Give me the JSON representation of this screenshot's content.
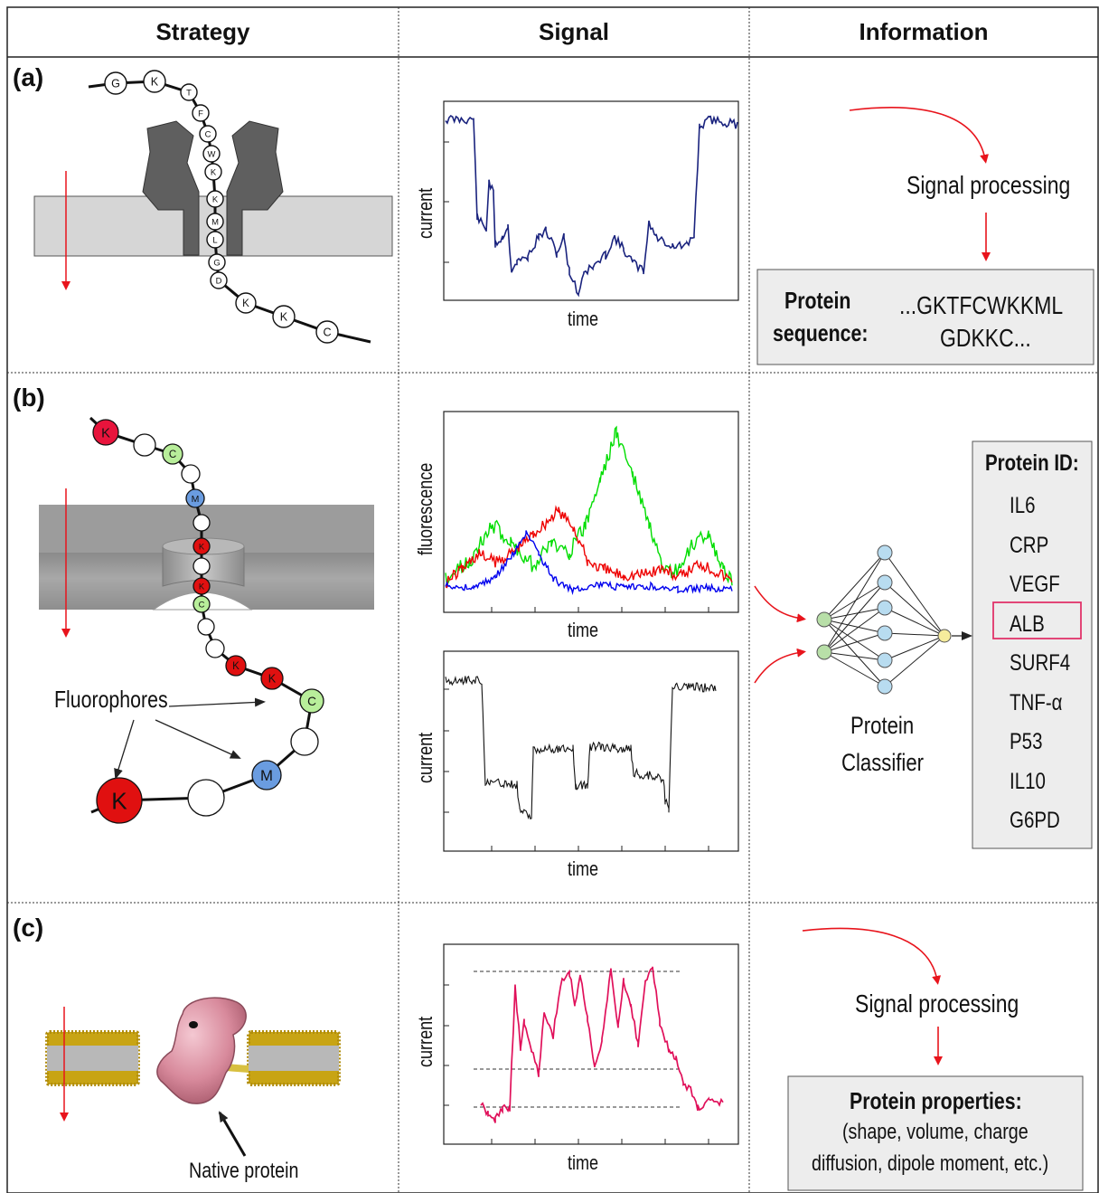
{
  "headers": {
    "strategy": "Strategy",
    "signal": "Signal",
    "information": "Information"
  },
  "panels": [
    {
      "label": "(a)",
      "residues": [
        "G",
        "K",
        "T",
        "F",
        "C",
        "W",
        "K",
        "K",
        "M",
        "L",
        "G",
        "D",
        "K",
        "K",
        "C"
      ],
      "signal_xlabel": "time",
      "signal_ylabel": "current",
      "process_label": "Signal processing",
      "output_title": "Protein sequence:",
      "output_title_line1": "Protein",
      "output_title_line2": "sequence:",
      "output_value_line1": "...GKTFCWKKML",
      "output_value_line2": "GDKKC..."
    },
    {
      "label": "(b)",
      "residues_labeled": [
        {
          "letter": "K",
          "color": "#e8143c"
        },
        {
          "letter": "C",
          "color": "#b8ee9a"
        },
        {
          "letter": "M",
          "color": "#6a9ce0"
        },
        {
          "letter": "K",
          "color": "#e01010"
        },
        {
          "letter": "K",
          "color": "#e01010"
        },
        {
          "letter": "C",
          "color": "#b8ee9a"
        },
        {
          "letter": "K",
          "color": "#e01010"
        },
        {
          "letter": "K",
          "color": "#e01010"
        },
        {
          "letter": "C",
          "color": "#b8ee9a"
        },
        {
          "letter": "M",
          "color": "#6a9ce0"
        },
        {
          "letter": "K",
          "color": "#e01010"
        }
      ],
      "fluorophores_label": "Fluorophores",
      "fluor_xlabel": "time",
      "fluor_ylabel": "fluorescence",
      "current_xlabel": "time",
      "current_ylabel": "current",
      "classifier_label_line1": "Protein",
      "classifier_label_line2": "Classifier",
      "id_title": "Protein ID:",
      "protein_ids": [
        "IL6",
        "CRP",
        "VEGF",
        "ALB",
        "SURF4",
        "TNF-α",
        "P53",
        "IL10",
        "G6PD"
      ],
      "highlighted_id": "ALB",
      "fluor_colors": [
        "#00dd00",
        "#ee0000",
        "#0000ee"
      ]
    },
    {
      "label": "(c)",
      "protein_label": "Native protein",
      "signal_xlabel": "time",
      "signal_ylabel": "current",
      "process_label": "Signal processing",
      "output_title": "Protein properties:",
      "output_line1": "(shape, volume, charge",
      "output_line2": "diffusion, dipole moment, etc.)",
      "trace_color": "#e0105a"
    }
  ],
  "colors": {
    "arrow": "#e8141c",
    "trace_a": "#1a237e",
    "trace_b_current": "#111111",
    "highlight_box": "#e0336a"
  }
}
